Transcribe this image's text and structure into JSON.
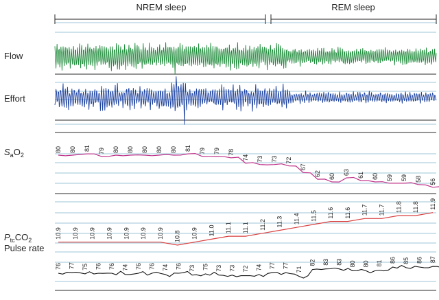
{
  "chart_data": {
    "type": "line",
    "phases": [
      {
        "label": "NREM sleep"
      },
      {
        "label": "REM sleep"
      }
    ],
    "channels": {
      "flow": {
        "label": "Flow",
        "color": "#1e8a3a"
      },
      "effort": {
        "label": "Effort",
        "color": "#1a3f9e"
      },
      "sao2": {
        "label_main": "S",
        "label_sub1": "a",
        "label_rest": "O",
        "label_sub2": "2",
        "color": "#c0338a",
        "values": [
          80,
          80,
          81,
          79,
          80,
          80,
          80,
          80,
          80,
          81,
          79,
          79,
          78,
          74,
          73,
          73,
          72,
          67,
          62,
          60,
          63,
          61,
          60,
          59,
          59,
          58,
          56
        ]
      },
      "ptcco2": {
        "label_main": "P",
        "label_sub1": "tc",
        "label_rest": "CO",
        "label_sub2": "2",
        "color": "#d94040",
        "values": [
          10.9,
          10.9,
          10.9,
          10.9,
          10.9,
          10.9,
          10.9,
          10.8,
          10.9,
          11.0,
          11.1,
          11.1,
          11.2,
          11.3,
          11.4,
          11.5,
          11.6,
          11.6,
          11.7,
          11.7,
          11.8,
          11.8,
          11.9
        ]
      },
      "pulse": {
        "label": "Pulse rate",
        "color": "#111111",
        "values": [
          76,
          77,
          75,
          76,
          76,
          74,
          76,
          76,
          74,
          76,
          73,
          75,
          73,
          73,
          72,
          74,
          77,
          77,
          71,
          82,
          83,
          83,
          80,
          80,
          81,
          86,
          85,
          86,
          87
        ]
      }
    },
    "colors": {
      "grid": "#9ec4d8",
      "divider": "#555555"
    }
  }
}
